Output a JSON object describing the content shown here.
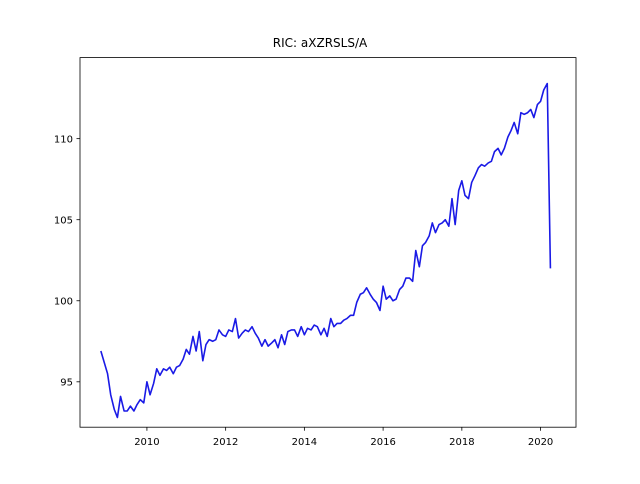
{
  "chart_data": {
    "type": "line",
    "title": "RIC: aXZRSLS/A",
    "xlabel": "",
    "ylabel": "",
    "xlim": [
      2008.3,
      2020.9
    ],
    "ylim": [
      92.2,
      115.0
    ],
    "grid": false,
    "line_color": "#1a1ae6",
    "x_ticks": [
      2010,
      2012,
      2014,
      2016,
      2018,
      2020
    ],
    "x_tick_labels": [
      "2010",
      "2012",
      "2014",
      "2016",
      "2018",
      "2020"
    ],
    "y_ticks": [
      95,
      100,
      105,
      110
    ],
    "y_tick_labels": [
      "95",
      "100",
      "105",
      "110"
    ],
    "series": [
      {
        "x": [
          2008.83,
          2009.0,
          2009.08,
          2009.17,
          2009.25,
          2009.33,
          2009.42,
          2009.5,
          2009.58,
          2009.67,
          2009.75,
          2009.83,
          2009.92,
          2010.0,
          2010.08,
          2010.17,
          2010.25,
          2010.33,
          2010.42,
          2010.5,
          2010.58,
          2010.67,
          2010.75,
          2010.83,
          2010.92,
          2011.0,
          2011.08,
          2011.17,
          2011.25,
          2011.33,
          2011.42,
          2011.5,
          2011.58,
          2011.67,
          2011.75,
          2011.83,
          2011.92,
          2012.0,
          2012.08,
          2012.17,
          2012.25,
          2012.33,
          2012.42,
          2012.5,
          2012.58,
          2012.67,
          2012.75,
          2012.83,
          2012.92,
          2013.0,
          2013.08,
          2013.17,
          2013.25,
          2013.33,
          2013.42,
          2013.5,
          2013.58,
          2013.67,
          2013.75,
          2013.83,
          2013.92,
          2014.0,
          2014.08,
          2014.17,
          2014.25,
          2014.33,
          2014.42,
          2014.5,
          2014.58,
          2014.67,
          2014.75,
          2014.83,
          2014.92,
          2015.0,
          2015.08,
          2015.17,
          2015.25,
          2015.33,
          2015.42,
          2015.5,
          2015.58,
          2015.67,
          2015.75,
          2015.83,
          2015.92,
          2016.0,
          2016.08,
          2016.17,
          2016.25,
          2016.33,
          2016.42,
          2016.5,
          2016.58,
          2016.67,
          2016.75,
          2016.83,
          2016.92,
          2017.0,
          2017.08,
          2017.17,
          2017.25,
          2017.33,
          2017.42,
          2017.5,
          2017.58,
          2017.67,
          2017.75,
          2017.83,
          2017.92,
          2018.0,
          2018.08,
          2018.17,
          2018.25,
          2018.33,
          2018.42,
          2018.5,
          2018.58,
          2018.67,
          2018.75,
          2018.83,
          2018.92,
          2019.0,
          2019.08,
          2019.17,
          2019.25,
          2019.33,
          2019.42,
          2019.5,
          2019.58,
          2019.67,
          2019.75,
          2019.83,
          2019.92,
          2020.0,
          2020.08,
          2020.17,
          2020.25
        ],
        "values": [
          96.9,
          95.5,
          94.2,
          93.3,
          92.8,
          94.1,
          93.2,
          93.2,
          93.5,
          93.2,
          93.6,
          93.9,
          93.7,
          95.0,
          94.2,
          94.9,
          95.8,
          95.4,
          95.8,
          95.7,
          95.9,
          95.5,
          95.9,
          96.0,
          96.4,
          97.0,
          96.7,
          97.8,
          96.9,
          98.1,
          96.3,
          97.3,
          97.6,
          97.5,
          97.6,
          98.2,
          97.9,
          97.8,
          98.2,
          98.1,
          98.9,
          97.7,
          98.0,
          98.2,
          98.1,
          98.4,
          98.0,
          97.7,
          97.2,
          97.6,
          97.2,
          97.4,
          97.6,
          97.1,
          97.9,
          97.3,
          98.1,
          98.2,
          98.2,
          97.8,
          98.4,
          97.9,
          98.3,
          98.2,
          98.5,
          98.4,
          97.9,
          98.3,
          97.8,
          98.9,
          98.4,
          98.6,
          98.6,
          98.8,
          98.9,
          99.1,
          99.1,
          99.9,
          100.4,
          100.5,
          100.8,
          100.4,
          100.1,
          99.9,
          99.4,
          100.9,
          100.1,
          100.3,
          100.0,
          100.1,
          100.7,
          100.9,
          101.4,
          101.4,
          101.2,
          103.1,
          102.1,
          103.4,
          103.6,
          104.0,
          104.8,
          104.2,
          104.7,
          104.8,
          105.0,
          104.6,
          106.3,
          104.7,
          106.8,
          107.4,
          106.5,
          106.3,
          107.3,
          107.7,
          108.2,
          108.4,
          108.3,
          108.5,
          108.6,
          109.2,
          109.4,
          109.0,
          109.4,
          110.1,
          110.5,
          111.0,
          110.3,
          111.6,
          111.5,
          111.6,
          111.8,
          111.3,
          112.1,
          112.3,
          113.0,
          113.4,
          102.0
        ]
      }
    ]
  }
}
